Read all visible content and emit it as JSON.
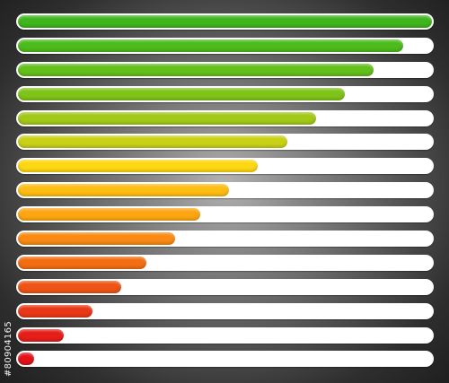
{
  "stock_id_text": "#80904165",
  "colors": {
    "track": "#ffffff",
    "background_center": "#b2b2b2",
    "background_edge": "#1f1f1f"
  },
  "bars": [
    {
      "fill_percent": 100,
      "color": "#3fb61d"
    },
    {
      "fill_percent": 93,
      "color": "#4dbb1c"
    },
    {
      "fill_percent": 86,
      "color": "#63bf1a"
    },
    {
      "fill_percent": 79,
      "color": "#7fc31a"
    },
    {
      "fill_percent": 72,
      "color": "#a2c818"
    },
    {
      "fill_percent": 65,
      "color": "#c9d117"
    },
    {
      "fill_percent": 58,
      "color": "#fdd712"
    },
    {
      "fill_percent": 51,
      "color": "#fdbd12"
    },
    {
      "fill_percent": 44,
      "color": "#fda612"
    },
    {
      "fill_percent": 38,
      "color": "#fa8a12"
    },
    {
      "fill_percent": 31,
      "color": "#f36d13"
    },
    {
      "fill_percent": 25,
      "color": "#ee5416"
    },
    {
      "fill_percent": 18,
      "color": "#e93818"
    },
    {
      "fill_percent": 11,
      "color": "#e51e19"
    },
    {
      "fill_percent": 4,
      "color": "#e3121a"
    }
  ]
}
